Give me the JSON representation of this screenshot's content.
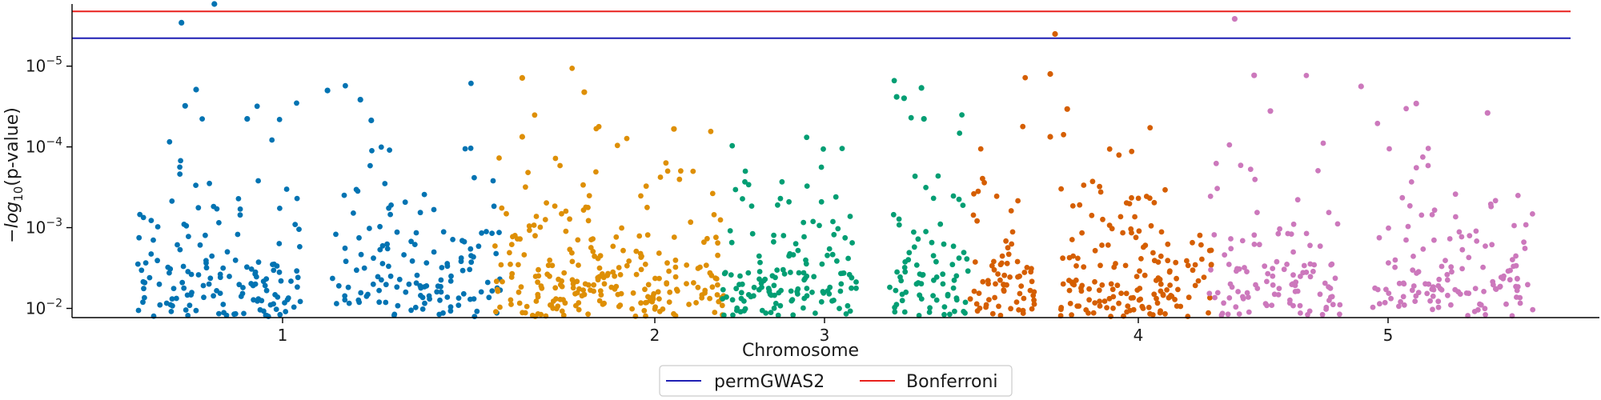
{
  "chart_data": {
    "type": "scatter",
    "title": "",
    "xlabel": "Chromosome",
    "ylabel": "−log10(p-value)",
    "y_scale": "log",
    "y_axis_inverted": true,
    "ylim": [
      0.013,
      1.7e-06
    ],
    "y_ticks": [
      {
        "value": 0.01,
        "base": "10",
        "exp": "−2"
      },
      {
        "value": 0.001,
        "base": "10",
        "exp": "−3"
      },
      {
        "value": 0.0001,
        "base": "10",
        "exp": "−4"
      },
      {
        "value": 1e-05,
        "base": "10",
        "exp": "−5"
      }
    ],
    "x_ticks": [
      {
        "label": "1",
        "chromosome": 1
      },
      {
        "label": "2",
        "chromosome": 2
      },
      {
        "label": "3",
        "chromosome": 3
      },
      {
        "label": "4",
        "chromosome": 4
      },
      {
        "label": "5",
        "chromosome": 5
      }
    ],
    "grid": false,
    "legend_position": "bottom-center",
    "thresholds": [
      {
        "name": "permGWAS2",
        "value": 4.5e-06,
        "color": "#1f1fb4"
      },
      {
        "name": "Bonferroni",
        "value": 2.1e-06,
        "color": "#e8211d"
      }
    ],
    "series": [
      {
        "chromosome": 1,
        "color": "#0173b2",
        "points_per_band": [
          2,
          4,
          8,
          14,
          26,
          44,
          70,
          120
        ],
        "n_points": 288,
        "top_hits": [
          {
            "position_frac": 0.12,
            "p": 2.9e-06
          },
          {
            "position_frac": 0.21,
            "p": 1.7e-06
          },
          {
            "position_frac": 0.16,
            "p": 1.95e-05
          },
          {
            "position_frac": 0.13,
            "p": 3.1e-05
          },
          {
            "position_frac": 0.3,
            "p": 4.5e-05
          },
          {
            "position_frac": 0.52,
            "p": 2e-05
          },
          {
            "position_frac": 0.61,
            "p": 2.6e-05
          },
          {
            "position_frac": 0.64,
            "p": 4.7e-05
          }
        ]
      },
      {
        "chromosome": 2,
        "color": "#de8f05",
        "points_per_band": [
          1,
          3,
          6,
          12,
          22,
          38,
          62,
          110
        ],
        "n_points": 254,
        "top_hits": [
          {
            "position_frac": 0.12,
            "p": 1.4e-05
          },
          {
            "position_frac": 0.39,
            "p": 2.1e-05
          },
          {
            "position_frac": 0.12,
            "p": 7.5e-05
          },
          {
            "position_frac": 0.78,
            "p": 6e-05
          }
        ]
      },
      {
        "chromosome": 3,
        "color": "#029e73",
        "points_per_band": [
          1,
          2,
          5,
          10,
          20,
          34,
          56,
          96
        ],
        "n_points": 224,
        "top_hits": [
          {
            "position_frac": 0.81,
            "p": 1.86e-05
          },
          {
            "position_frac": 0.71,
            "p": 2.4e-05
          },
          {
            "position_frac": 0.74,
            "p": 2.5e-05
          },
          {
            "position_frac": 0.82,
            "p": 4.5e-05
          }
        ]
      },
      {
        "chromosome": 4,
        "color": "#d55e00",
        "points_per_band": [
          1,
          2,
          5,
          10,
          20,
          34,
          58,
          104
        ],
        "n_points": 234,
        "top_hits": [
          {
            "position_frac": 0.35,
            "p": 4e-06
          },
          {
            "position_frac": 0.33,
            "p": 1.25e-05
          },
          {
            "position_frac": 0.4,
            "p": 3.4e-05
          },
          {
            "position_frac": 0.33,
            "p": 7.5e-05
          }
        ]
      },
      {
        "chromosome": 5,
        "color": "#cc78bc",
        "points_per_band": [
          1,
          2,
          5,
          10,
          20,
          36,
          62,
          110
        ],
        "n_points": 246,
        "top_hits": [
          {
            "position_frac": 0.08,
            "p": 2.6e-06
          },
          {
            "position_frac": 0.14,
            "p": 1.3e-05
          },
          {
            "position_frac": 0.47,
            "p": 1.78e-05
          },
          {
            "position_frac": 0.64,
            "p": 2.9e-05
          },
          {
            "position_frac": 0.86,
            "p": 3.8e-05
          },
          {
            "position_frac": 0.19,
            "p": 3.6e-05
          }
        ]
      }
    ]
  }
}
